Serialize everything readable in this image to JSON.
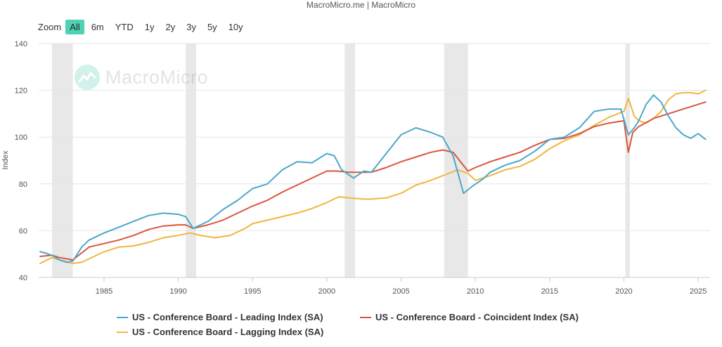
{
  "credit": "MacroMicro.me | MacroMicro",
  "watermark": "MacroMicro",
  "zoom": {
    "label": "Zoom",
    "buttons": [
      "All",
      "6m",
      "YTD",
      "1y",
      "2y",
      "3y",
      "5y",
      "10y"
    ],
    "active": "All"
  },
  "colors": {
    "leading": "#4aa8cc",
    "coincident": "#d9553f",
    "lagging": "#efb63f",
    "recession": "#e8e8e8"
  },
  "chart_data": {
    "type": "line",
    "xlabel": "",
    "ylabel": "Index",
    "xlim": [
      1980.6,
      2025.8
    ],
    "ylim": [
      40,
      140
    ],
    "yticks": [
      40,
      60,
      80,
      100,
      120,
      140
    ],
    "xticks": [
      1985,
      1990,
      1995,
      2000,
      2005,
      2010,
      2015,
      2020,
      2025
    ],
    "grid": true,
    "legend_position": "bottom",
    "recessions": [
      [
        1981.5,
        1982.9
      ],
      [
        1990.5,
        1991.2
      ],
      [
        2001.2,
        2001.9
      ],
      [
        2007.9,
        2009.5
      ],
      [
        2020.1,
        2020.4
      ]
    ],
    "series": [
      {
        "name": "US - Conference Board - Leading Index (SA)",
        "x": [
          1980.7,
          1981.0,
          1981.5,
          1982.0,
          1982.5,
          1982.9,
          1983.5,
          1984.0,
          1985.0,
          1986.0,
          1987.0,
          1988.0,
          1989.0,
          1990.0,
          1990.5,
          1991.0,
          1992.0,
          1993.0,
          1994.0,
          1995.0,
          1996.0,
          1997.0,
          1998.0,
          1999.0,
          2000.0,
          2000.5,
          2001.0,
          2001.8,
          2002.5,
          2003.0,
          2004.0,
          2005.0,
          2006.0,
          2007.0,
          2007.8,
          2008.5,
          2009.2,
          2009.8,
          2010.5,
          2011.0,
          2012.0,
          2013.0,
          2014.0,
          2015.0,
          2016.0,
          2017.0,
          2018.0,
          2019.0,
          2019.8,
          2020.3,
          2020.7,
          2021.0,
          2021.5,
          2022.0,
          2022.5,
          2023.0,
          2023.5,
          2024.0,
          2024.5,
          2025.0,
          2025.5
        ],
        "y": [
          51,
          50.5,
          49.5,
          47.5,
          46.5,
          47,
          53,
          56,
          59,
          61.5,
          64,
          66.5,
          67.5,
          67,
          66,
          61,
          64,
          69,
          73,
          78,
          80,
          86,
          89.5,
          89,
          93,
          92,
          86,
          82.5,
          85.5,
          85,
          93,
          101,
          104,
          102,
          100,
          92,
          76,
          79,
          82,
          85,
          88,
          90,
          94,
          99,
          100,
          104,
          111,
          112,
          112,
          101,
          104,
          107,
          114,
          118,
          115,
          109,
          104,
          101,
          99.5,
          101.5,
          99
        ]
      },
      {
        "name": "US - Conference Board - Coincident Index (SA)",
        "x": [
          1980.7,
          1981.5,
          1982.0,
          1982.9,
          1983.5,
          1984.0,
          1985.0,
          1986.0,
          1987.0,
          1988.0,
          1989.0,
          1990.0,
          1990.5,
          1991.0,
          1992.0,
          1993.0,
          1994.0,
          1995.0,
          1996.0,
          1997.0,
          1998.0,
          1999.0,
          2000.0,
          2000.7,
          2001.5,
          2002.0,
          2003.0,
          2004.0,
          2005.0,
          2006.0,
          2007.0,
          2007.8,
          2008.5,
          2009.0,
          2009.5,
          2010.0,
          2011.0,
          2012.0,
          2013.0,
          2014.0,
          2015.0,
          2016.0,
          2017.0,
          2018.0,
          2019.0,
          2020.0,
          2020.3,
          2020.6,
          2021.0,
          2022.0,
          2023.0,
          2024.0,
          2025.0,
          2025.5
        ],
        "y": [
          49,
          49.5,
          48.5,
          47.5,
          50.5,
          53,
          54.5,
          56,
          58,
          60.5,
          62,
          62.5,
          62.5,
          61,
          62.5,
          64.5,
          67.5,
          70.5,
          73,
          76.5,
          79.5,
          82.5,
          85.5,
          85.5,
          85,
          85,
          85,
          87,
          89.5,
          91.5,
          93.5,
          94.5,
          93.5,
          89.5,
          85.5,
          87,
          89.5,
          91.5,
          93.5,
          96.5,
          99,
          99.5,
          101.5,
          104.5,
          106,
          107,
          93.5,
          102,
          104.5,
          108,
          110,
          112,
          114,
          115
        ]
      },
      {
        "name": "US - Conference Board - Lagging Index (SA)",
        "x": [
          1980.7,
          1981.5,
          1982.0,
          1982.9,
          1983.5,
          1984.0,
          1985.0,
          1986.0,
          1987.0,
          1988.0,
          1989.0,
          1990.0,
          1990.8,
          1991.5,
          1992.5,
          1993.5,
          1994.5,
          1995.0,
          1996.0,
          1997.0,
          1998.0,
          1999.0,
          2000.0,
          2000.8,
          2001.5,
          2002.5,
          2003.0,
          2004.0,
          2005.0,
          2006.0,
          2007.0,
          2008.0,
          2008.8,
          2009.5,
          2010.0,
          2011.0,
          2012.0,
          2013.0,
          2014.0,
          2015.0,
          2016.0,
          2017.0,
          2018.0,
          2019.0,
          2020.0,
          2020.3,
          2020.7,
          2021.0,
          2021.5,
          2022.0,
          2022.5,
          2023.0,
          2023.5,
          2024.0,
          2024.5,
          2025.0,
          2025.5
        ],
        "y": [
          46,
          48.5,
          47.5,
          46,
          46.5,
          48,
          51,
          53,
          53.5,
          55,
          57,
          58,
          59,
          58,
          57,
          58,
          61,
          63,
          64.5,
          66,
          67.5,
          69.5,
          72,
          74.5,
          74,
          73.5,
          73.5,
          74,
          76,
          79.5,
          81.5,
          84,
          86,
          84.5,
          81.5,
          83.5,
          86,
          87.5,
          90.5,
          95,
          98.5,
          101,
          105,
          108.5,
          111,
          116.5,
          109,
          107,
          106,
          108,
          111,
          116,
          118.5,
          119,
          119,
          118.5,
          120
        ]
      }
    ]
  }
}
